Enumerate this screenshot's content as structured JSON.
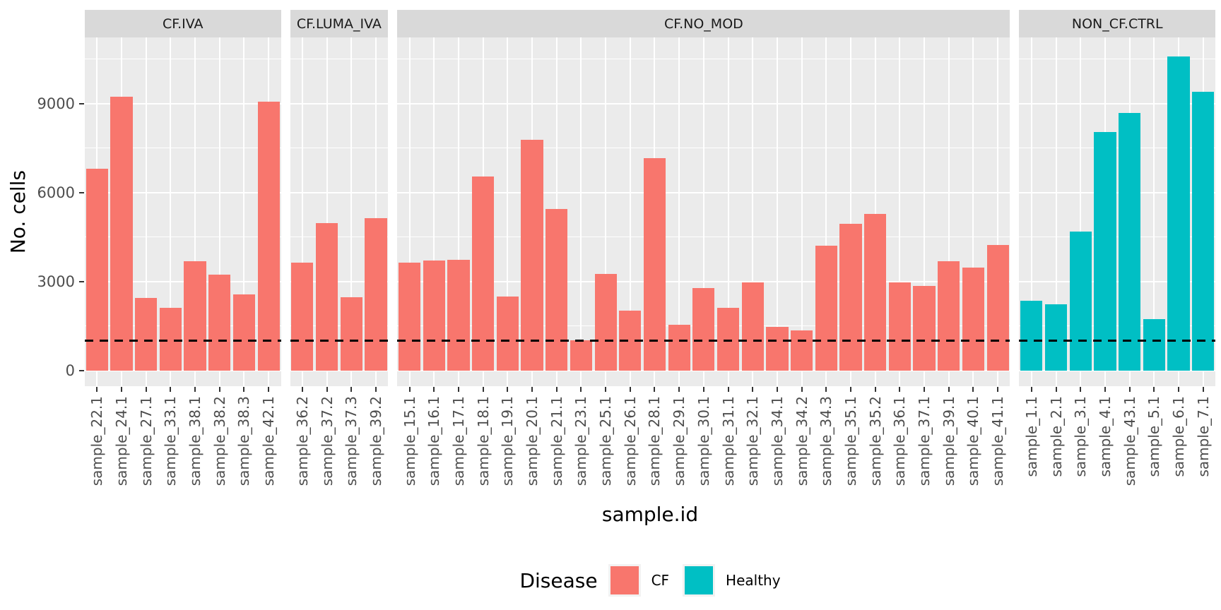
{
  "chart_data": {
    "type": "bar",
    "title": "",
    "xlabel": "sample.id",
    "ylabel": "No. cells",
    "ylim": [
      -535,
      11235
    ],
    "y_ticks": [
      0,
      3000,
      6000,
      9000
    ],
    "y_tick_labels": [
      "0",
      "3000",
      "6000",
      "9000"
    ],
    "y_minor_ticks": [
      1500,
      4500,
      7500,
      10500
    ],
    "grid": "on",
    "hline": {
      "value": 1000,
      "style": "dashed",
      "color": "#000000"
    },
    "legend": {
      "title": "Disease",
      "position": "bottom",
      "entries": [
        {
          "label": "CF",
          "color": "#F8766D"
        },
        {
          "label": "Healthy",
          "color": "#00BFC4"
        }
      ]
    },
    "colors": {
      "cf": "#F8766D",
      "healthy": "#00BFC4",
      "panel_bg": "#EBEBEB",
      "strip_bg": "#D9D9D9",
      "grid": "#FFFFFF",
      "tick_text": "#4D4D4D",
      "hline": "#000000"
    },
    "facets": [
      {
        "label": "CF.IVA",
        "disease": "CF",
        "samples": [
          "sample_22.1",
          "sample_24.1",
          "sample_27.1",
          "sample_33.1",
          "sample_38.1",
          "sample_38.2",
          "sample_38.3",
          "sample_42.1"
        ],
        "values": [
          6800,
          9230,
          2450,
          2120,
          3690,
          3240,
          2570,
          9070
        ]
      },
      {
        "label": "CF.LUMA_IVA",
        "disease": "CF",
        "samples": [
          "sample_36.2",
          "sample_37.2",
          "sample_37.3",
          "sample_39.2"
        ],
        "values": [
          3630,
          4960,
          2460,
          5140
        ]
      },
      {
        "label": "CF.NO_MOD",
        "disease": "CF",
        "samples": [
          "sample_15.1",
          "sample_16.1",
          "sample_17.1",
          "sample_18.1",
          "sample_19.1",
          "sample_20.1",
          "sample_21.1",
          "sample_23.1",
          "sample_25.1",
          "sample_26.1",
          "sample_28.1",
          "sample_29.1",
          "sample_30.1",
          "sample_31.1",
          "sample_32.1",
          "sample_34.1",
          "sample_34.2",
          "sample_34.3",
          "sample_35.1",
          "sample_35.2",
          "sample_36.1",
          "sample_37.1",
          "sample_39.1",
          "sample_40.1",
          "sample_41.1"
        ],
        "values": [
          3630,
          3710,
          3740,
          6550,
          2500,
          7780,
          5450,
          1010,
          3260,
          2020,
          7150,
          1550,
          2770,
          2120,
          2960,
          1470,
          1350,
          4200,
          4940,
          5270,
          2970,
          2850,
          3690,
          3480,
          4230
        ]
      },
      {
        "label": "NON_CF.CTRL",
        "disease": "Healthy",
        "samples": [
          "sample_1.1",
          "sample_2.1",
          "sample_3.1",
          "sample_4.1",
          "sample_43.1",
          "sample_5.1",
          "sample_6.1",
          "sample_7.1"
        ],
        "values": [
          2360,
          2240,
          4690,
          8040,
          8680,
          1720,
          10600,
          9390
        ]
      }
    ]
  }
}
